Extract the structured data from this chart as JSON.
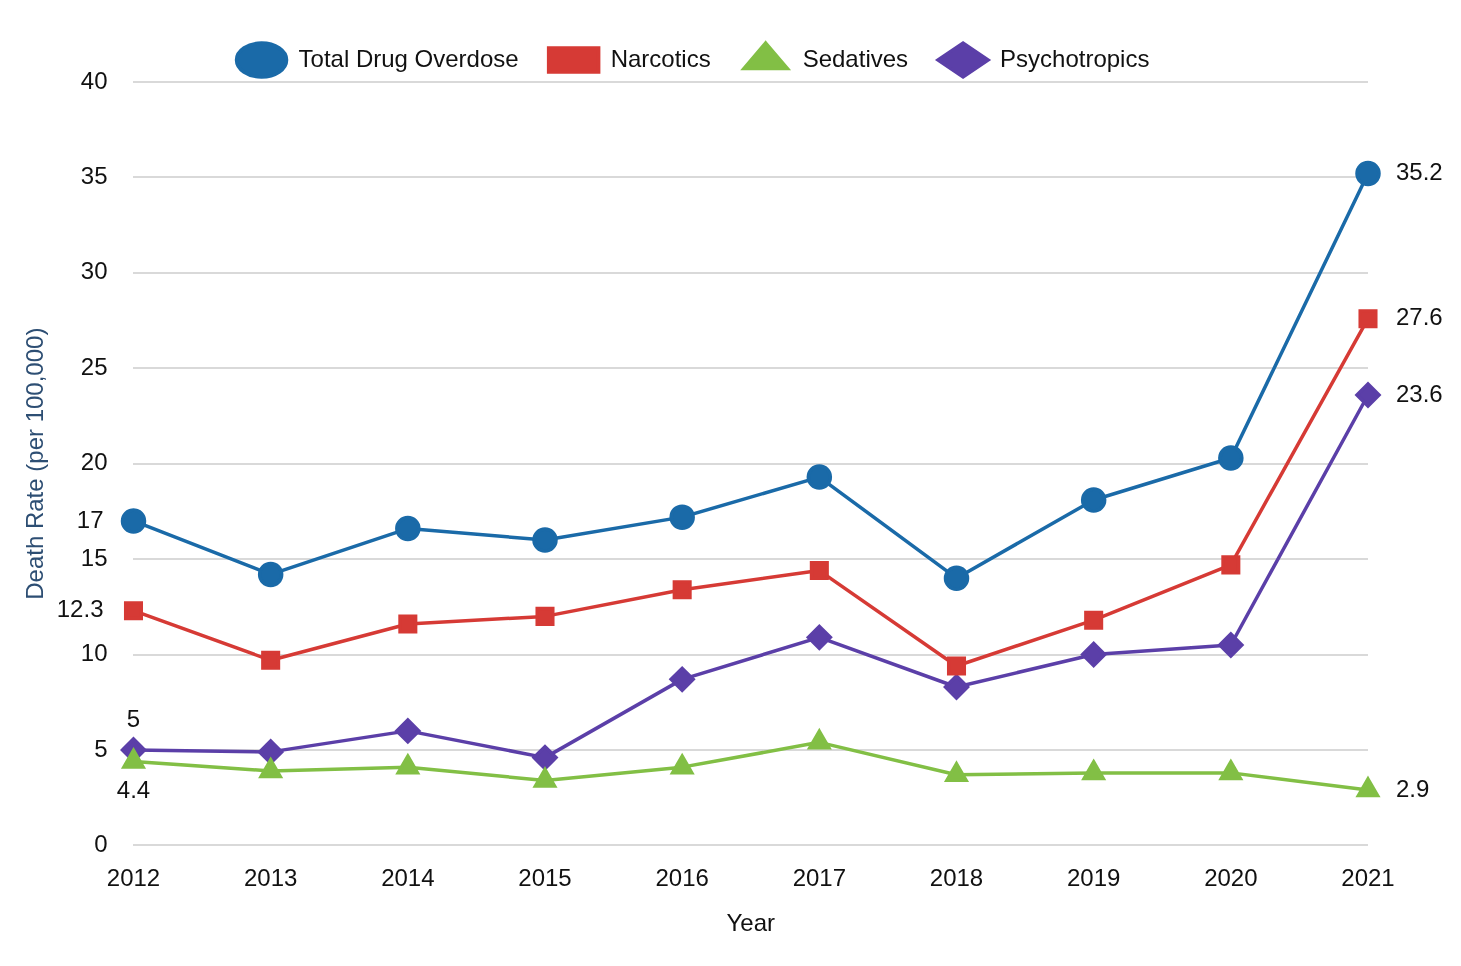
{
  "chart_data": {
    "type": "line",
    "xlabel": "Year",
    "ylabel": "Death Rate (per 100,000)",
    "categories": [
      "2012",
      "2013",
      "2014",
      "2015",
      "2016",
      "2017",
      "2018",
      "2019",
      "2020",
      "2021"
    ],
    "ylim": [
      0,
      40
    ],
    "yticks": [
      0,
      5,
      10,
      15,
      20,
      25,
      30,
      35,
      40
    ],
    "grid": "y",
    "legend": "top",
    "series": [
      {
        "name": "Total Drug Overdose",
        "color": "#1a6aa8",
        "marker": "circle",
        "values": [
          17,
          14.2,
          16.6,
          16.0,
          17.2,
          19.3,
          14.0,
          18.1,
          20.3,
          35.2
        ],
        "value_labels": [
          "17",
          null,
          null,
          null,
          null,
          null,
          null,
          null,
          null,
          "35.2"
        ]
      },
      {
        "name": "Narcotics",
        "color": "#d63a35",
        "marker": "square",
        "values": [
          12.3,
          9.7,
          11.6,
          12.0,
          13.4,
          14.4,
          9.4,
          11.8,
          14.7,
          27.6
        ],
        "value_labels": [
          "12.3",
          null,
          null,
          null,
          null,
          null,
          null,
          null,
          null,
          "27.6"
        ]
      },
      {
        "name": "Sedatives",
        "color": "#82bf45",
        "marker": "triangle",
        "values": [
          4.4,
          3.9,
          4.1,
          3.4,
          4.1,
          5.4,
          3.7,
          3.8,
          3.8,
          2.9
        ],
        "value_labels": [
          "4.4",
          null,
          null,
          null,
          null,
          null,
          null,
          null,
          null,
          "2.9"
        ]
      },
      {
        "name": "Psychotropics",
        "color": "#5b3fa8",
        "marker": "diamond",
        "values": [
          5,
          4.9,
          6.0,
          4.6,
          8.7,
          10.9,
          8.3,
          10.0,
          10.5,
          23.6
        ],
        "value_labels": [
          "5",
          null,
          null,
          null,
          null,
          null,
          null,
          null,
          null,
          "23.6"
        ]
      }
    ]
  }
}
